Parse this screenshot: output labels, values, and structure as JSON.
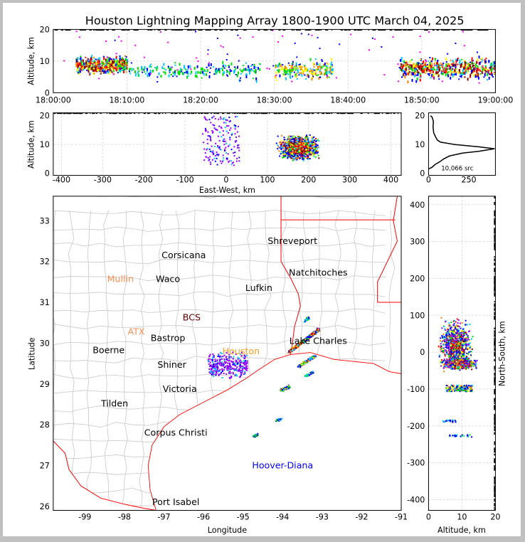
{
  "title": "Houston Lightning Mapping Array 1800-1900 UTC March 04, 2025",
  "colors": {
    "density": [
      "#0000ff",
      "#00c8ff",
      "#00e000",
      "#ffff00",
      "#ff8000",
      "#ff0000",
      "#800000",
      "#000000"
    ],
    "sparse": "#9900ff",
    "border": "#ff0000",
    "county": "#c8c8c8"
  },
  "chart_data": [
    {
      "type": "scatter",
      "name_id": "time-height",
      "ylabel": "Altitude, km",
      "xlim": [
        "18:00:00",
        "19:00:00"
      ],
      "ylim": [
        0,
        20
      ],
      "xticks": [
        "18:00:00",
        "18:10:00",
        "18:20:00",
        "18:30:00",
        "18:40:00",
        "18:50:00",
        "19:00:00"
      ],
      "yticks": [
        "0",
        "10",
        "20"
      ],
      "source_regions": [
        {
          "t_min": [
            3,
            10
          ],
          "alt_km": [
            5,
            12
          ],
          "density": "high"
        },
        {
          "t_min": [
            10,
            20
          ],
          "alt_km": [
            3,
            10
          ],
          "density": "low"
        },
        {
          "t_min": [
            20,
            28
          ],
          "alt_km": [
            3,
            11
          ],
          "density": "low"
        },
        {
          "t_min": [
            30,
            38
          ],
          "alt_km": [
            3,
            11
          ],
          "density": "medium"
        },
        {
          "t_min": [
            47,
            60
          ],
          "alt_km": [
            3,
            12
          ],
          "density": "high"
        }
      ]
    },
    {
      "type": "scatter",
      "name_id": "east-west-altitude",
      "xlabel": "East-West, km",
      "ylabel": "Altitude, km",
      "xlim": [
        -420,
        425
      ],
      "ylim": [
        0,
        20
      ],
      "xticks": [
        "-400",
        "-300",
        "-200",
        "-100",
        "0",
        "100",
        "200",
        "300",
        "400"
      ],
      "yticks": [
        "0",
        "10",
        "20"
      ],
      "source_regions": [
        {
          "x_km": [
            130,
            245
          ],
          "alt_km": [
            2,
            14
          ],
          "peak_x_km": 175,
          "peak_alt_km": 9,
          "density": "high"
        },
        {
          "x_km": [
            -60,
            30
          ],
          "alt_km": [
            3,
            20
          ],
          "density": "low"
        }
      ]
    },
    {
      "type": "line",
      "name_id": "altitude-histogram",
      "annotation": "10,066 src",
      "xlim": [
        0,
        415
      ],
      "ylim": [
        -0.75,
        21
      ],
      "xticks": [
        "0",
        "250"
      ],
      "yticks": [
        "0",
        "10",
        "20"
      ],
      "points": [
        [
          0,
          1.5
        ],
        [
          20,
          2
        ],
        [
          40,
          3
        ],
        [
          70,
          4
        ],
        [
          95,
          5
        ],
        [
          130,
          6
        ],
        [
          210,
          7
        ],
        [
          310,
          7.6
        ],
        [
          410,
          8.5
        ],
        [
          310,
          9.2
        ],
        [
          160,
          10
        ],
        [
          75,
          10.8
        ],
        [
          55,
          11.5
        ],
        [
          45,
          12.5
        ],
        [
          32,
          14
        ],
        [
          28,
          16
        ],
        [
          30,
          18
        ],
        [
          22,
          19.5
        ],
        [
          12,
          20
        ]
      ]
    },
    {
      "type": "scatter",
      "name_id": "plan-view",
      "xlabel": "Longitude",
      "ylabel": "Latitude",
      "xlim": [
        -99.8,
        -91
      ],
      "ylim": [
        25.9,
        33.6
      ],
      "xticks": [
        "-99",
        "-98",
        "-97",
        "-96",
        "-95",
        "-94",
        "-93",
        "-92",
        "-91"
      ],
      "yticks": [
        "26",
        "27",
        "28",
        "29",
        "30",
        "31",
        "32",
        "33"
      ],
      "source_regions": [
        {
          "from": [
            -93.85,
            29.8
          ],
          "to": [
            -93.1,
            30.35
          ],
          "density": "high"
        },
        {
          "from": [
            -93.6,
            29.45
          ],
          "to": [
            -93.2,
            29.7
          ],
          "density": "medium"
        },
        {
          "from": [
            -93.45,
            29.2
          ],
          "to": [
            -93.25,
            29.3
          ],
          "density": "low"
        },
        {
          "from": [
            -94.05,
            28.85
          ],
          "to": [
            -93.85,
            28.95
          ],
          "density": "medium"
        },
        {
          "from": [
            -93.45,
            30.55
          ],
          "to": [
            -93.35,
            30.65
          ],
          "density": "low"
        },
        {
          "from": [
            -94.15,
            28.12
          ],
          "to": [
            -94.05,
            28.16
          ],
          "density": "low"
        },
        {
          "from": [
            -94.75,
            27.73
          ],
          "to": [
            -94.65,
            27.77
          ],
          "density": "low"
        },
        {
          "from": [
            -95.9,
            29.3
          ],
          "to": [
            -94.9,
            30.1
          ],
          "density": "sparse"
        }
      ],
      "places": [
        {
          "name": "Shreveport",
          "lon": -93.75,
          "lat": 32.5,
          "color": "#000000"
        },
        {
          "name": "Corsicana",
          "lon": -96.5,
          "lat": 32.15,
          "color": "#000000"
        },
        {
          "name": "Mullin",
          "lon": -98.1,
          "lat": 31.57,
          "color": "#ff8c50"
        },
        {
          "name": "Waco",
          "lon": -96.9,
          "lat": 31.57,
          "color": "#000000"
        },
        {
          "name": "Lufkin",
          "lon": -94.6,
          "lat": 31.35,
          "color": "#000000"
        },
        {
          "name": "Natchitoches",
          "lon": -93.1,
          "lat": 31.72,
          "color": "#000000"
        },
        {
          "name": "BCS",
          "lon": -96.3,
          "lat": 30.63,
          "color": "#600000"
        },
        {
          "name": "ATX",
          "lon": -97.7,
          "lat": 30.28,
          "color": "#ff8c50"
        },
        {
          "name": "Bastrop",
          "lon": -96.9,
          "lat": 30.12,
          "color": "#000000"
        },
        {
          "name": "Boerne",
          "lon": -98.4,
          "lat": 29.82,
          "color": "#000000"
        },
        {
          "name": "Houston",
          "lon": -95.05,
          "lat": 29.8,
          "color": "#ffa020"
        },
        {
          "name": "Lake Charles",
          "lon": -93.1,
          "lat": 30.05,
          "color": "#000000"
        },
        {
          "name": "Shiner",
          "lon": -96.8,
          "lat": 29.47,
          "color": "#000000"
        },
        {
          "name": "Victoria",
          "lon": -96.6,
          "lat": 28.87,
          "color": "#000000"
        },
        {
          "name": "Tilden",
          "lon": -98.25,
          "lat": 28.52,
          "color": "#000000"
        },
        {
          "name": "Corpus Christi",
          "lon": -96.7,
          "lat": 27.8,
          "color": "#000000"
        },
        {
          "name": "Hoover-Diana",
          "lon": -94.0,
          "lat": 27.0,
          "color": "#0000ff"
        },
        {
          "name": "Port Isabel",
          "lon": -96.7,
          "lat": 26.1,
          "color": "#000000"
        }
      ]
    },
    {
      "type": "scatter",
      "name_id": "north-south-altitude",
      "xlabel": "Altitude, km",
      "ylabel": "North-South, km",
      "xlim": [
        0,
        20
      ],
      "ylim": [
        -429,
        423
      ],
      "xticks": [
        "0",
        "10",
        "20"
      ],
      "yticks": [
        "-400",
        "-300",
        "-200",
        "-100",
        "0",
        "100",
        "200",
        "300",
        "400"
      ],
      "source_regions": [
        {
          "alt_km": [
            1,
            20
          ],
          "y_km": [
            -60,
            100
          ],
          "peak_alt_km": 8,
          "peak_y_km": 20,
          "density": "high"
        },
        {
          "alt_km": [
            2,
            18
          ],
          "y_km": [
            -50,
            -15
          ],
          "peak_alt_km": 9,
          "peak_y_km": -30,
          "density": "high"
        },
        {
          "alt_km": [
            5,
            13
          ],
          "y_km": [
            -105,
            -88
          ],
          "density": "medium"
        },
        {
          "alt_km": [
            4,
            8
          ],
          "y_km": [
            -188,
            -182
          ],
          "density": "low"
        },
        {
          "alt_km": [
            6,
            13
          ],
          "y_km": [
            -228,
            -222
          ],
          "density": "low"
        }
      ]
    }
  ]
}
